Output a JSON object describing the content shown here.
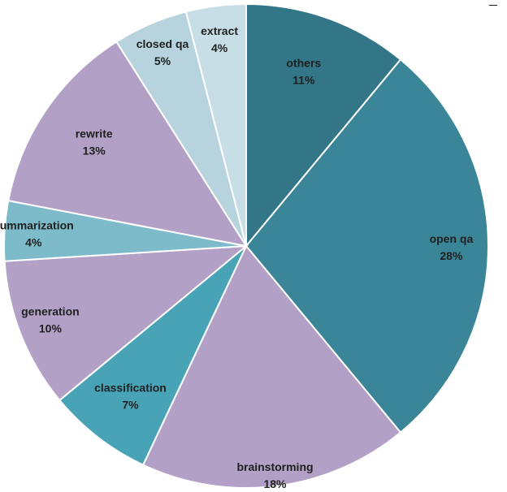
{
  "chart_data": {
    "type": "pie",
    "title": "",
    "start_angle_deg": 0,
    "direction": "clockwise",
    "slices": [
      {
        "label": "others",
        "value": 11,
        "display": "11%",
        "color": "#337688"
      },
      {
        "label": "open qa",
        "value": 28,
        "display": "28%",
        "color": "#3A8698"
      },
      {
        "label": "brainstorming",
        "value": 18,
        "display": "18%",
        "color": "#B2A0C6"
      },
      {
        "label": "classification",
        "value": 7,
        "display": "7%",
        "color": "#48A3B6"
      },
      {
        "label": "generation",
        "value": 10,
        "display": "10%",
        "color": "#B2A0C6"
      },
      {
        "label": "summarization",
        "value": 4,
        "display": "4%",
        "color": "#7DBBCB"
      },
      {
        "label": "rewrite",
        "value": 13,
        "display": "13%",
        "color": "#B2A0C6"
      },
      {
        "label": "closed qa",
        "value": 5,
        "display": "5%",
        "color": "#B6D3DE"
      },
      {
        "label": "extract",
        "value": 4,
        "display": "4%",
        "color": "#C8DEE7"
      }
    ],
    "legend": "none"
  }
}
